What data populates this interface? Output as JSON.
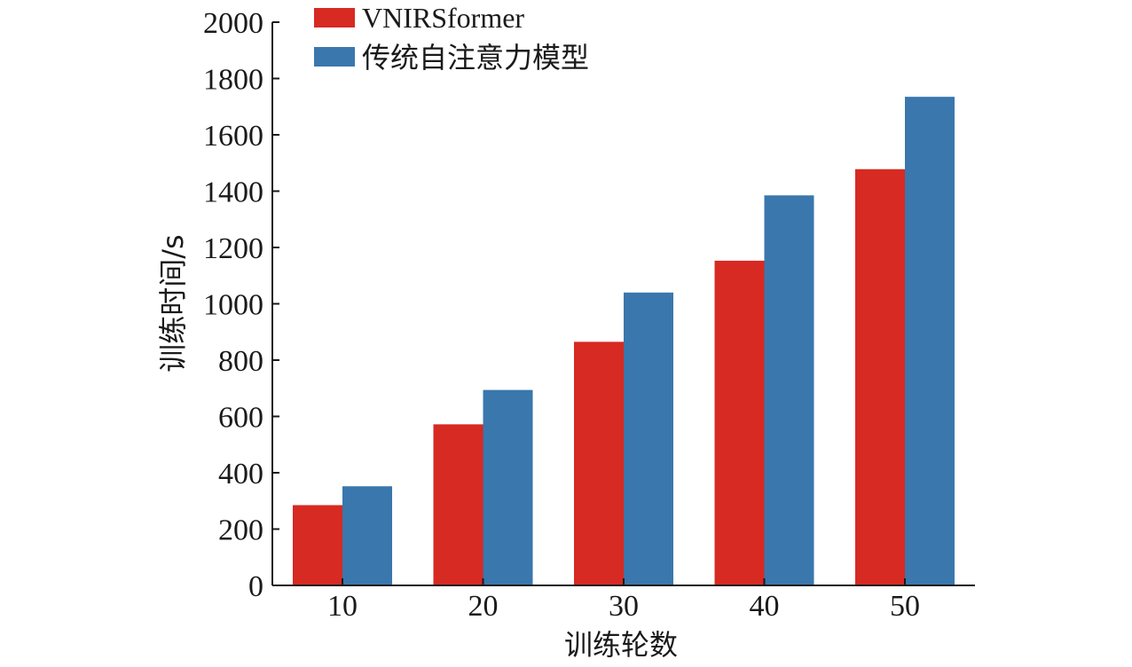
{
  "chart_data": {
    "type": "bar",
    "title": "",
    "xlabel": "训练轮数",
    "ylabel": "训练时间/s",
    "categories": [
      "10",
      "20",
      "30",
      "40",
      "50"
    ],
    "series": [
      {
        "name": "VNIRSformer",
        "color": "#d62a22",
        "values": [
          285,
          572,
          865,
          1153,
          1478
        ]
      },
      {
        "name": "传统自注意力模型",
        "color": "#3a77ad",
        "values": [
          352,
          694,
          1040,
          1385,
          1735
        ]
      }
    ],
    "ylim": [
      0,
      2000
    ],
    "yticks": [
      "0",
      "200",
      "400",
      "600",
      "800",
      "1000",
      "1200",
      "1400",
      "1600",
      "1800",
      "2000"
    ],
    "grid": false,
    "legend_position": "top-left"
  }
}
